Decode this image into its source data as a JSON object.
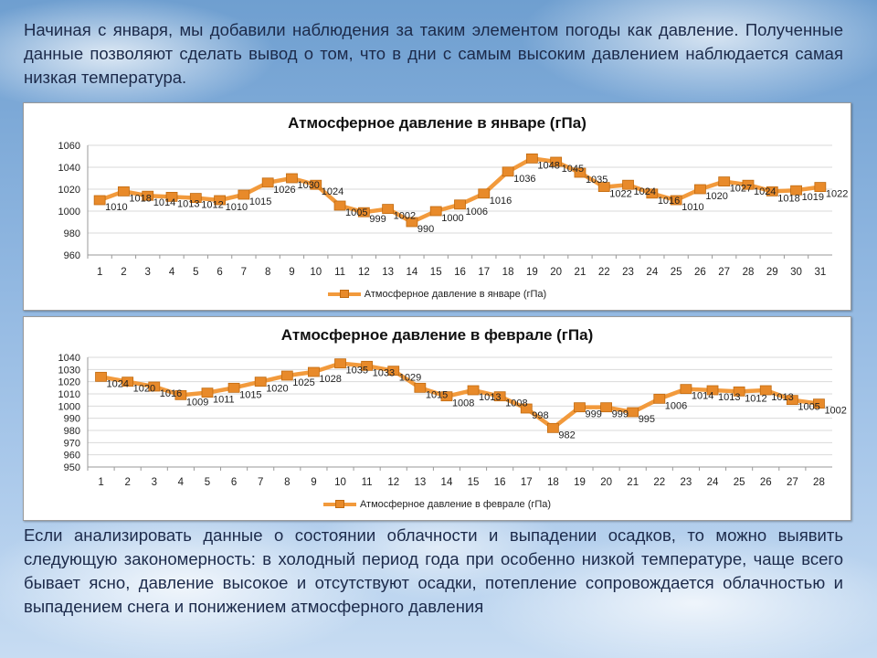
{
  "text": {
    "intro": "Начиная с января, мы добавили наблюдения за таким элементом погоды как давление. Полученные данные позволяют сделать вывод о том, что в дни с самым высоким давлением наблюдается самая низкая температура.",
    "conclusion": "Если анализировать данные о состоянии облачности и выпадении осадков, то можно выявить следующую закономерность: в холодный период года при особенно низкой температуре, чаще всего бывает ясно, давление высокое и отсутствуют осадки, потепление сопровождается облачностью и выпадением снега и понижением атмосферного давления"
  },
  "colors": {
    "line": "#f29a3c",
    "marker": "#e88a2a",
    "grid": "#d9d9d9"
  },
  "chart_data": [
    {
      "type": "line",
      "title": "Атмосферное давление в январе (гПа)",
      "categories": [
        "1",
        "2",
        "3",
        "4",
        "5",
        "6",
        "7",
        "8",
        "9",
        "10",
        "11",
        "12",
        "13",
        "14",
        "15",
        "16",
        "17",
        "18",
        "19",
        "20",
        "21",
        "22",
        "23",
        "24",
        "25",
        "26",
        "27",
        "28",
        "29",
        "30",
        "31"
      ],
      "series": [
        {
          "name": "Атмосферное давление в январе (гПа)",
          "values": [
            1010,
            1018,
            1014,
            1013,
            1012,
            1010,
            1015,
            1026,
            1030,
            1024,
            1005,
            999,
            1002,
            990,
            1000,
            1006,
            1016,
            1036,
            1048,
            1045,
            1035,
            1022,
            1024,
            1016,
            1010,
            1020,
            1027,
            1024,
            1018,
            1019,
            1022
          ]
        }
      ],
      "ylim": [
        960,
        1060
      ],
      "yticks": [
        960,
        980,
        1000,
        1020,
        1040,
        1060
      ],
      "grid": true,
      "legend": "bottom",
      "xlabel": "",
      "ylabel": ""
    },
    {
      "type": "line",
      "title": "Атмосферное давление в феврале (гПа)",
      "categories": [
        "1",
        "2",
        "3",
        "4",
        "5",
        "6",
        "7",
        "8",
        "9",
        "10",
        "11",
        "12",
        "13",
        "14",
        "15",
        "16",
        "17",
        "18",
        "19",
        "20",
        "21",
        "22",
        "23",
        "24",
        "25",
        "26",
        "27",
        "28"
      ],
      "series": [
        {
          "name": "Атмосферное давление в феврале (гПа)",
          "values": [
            1024,
            1020,
            1016,
            1009,
            1011,
            1015,
            1020,
            1025,
            1028,
            1035,
            1033,
            1029,
            1015,
            1008,
            1013,
            1008,
            998,
            982,
            999,
            999,
            995,
            1006,
            1014,
            1013,
            1012,
            1013,
            1005,
            1002
          ]
        }
      ],
      "ylim": [
        950,
        1040
      ],
      "yticks": [
        950,
        960,
        970,
        980,
        990,
        1000,
        1010,
        1020,
        1030,
        1040
      ],
      "grid": true,
      "legend": "bottom",
      "xlabel": "",
      "ylabel": ""
    }
  ]
}
